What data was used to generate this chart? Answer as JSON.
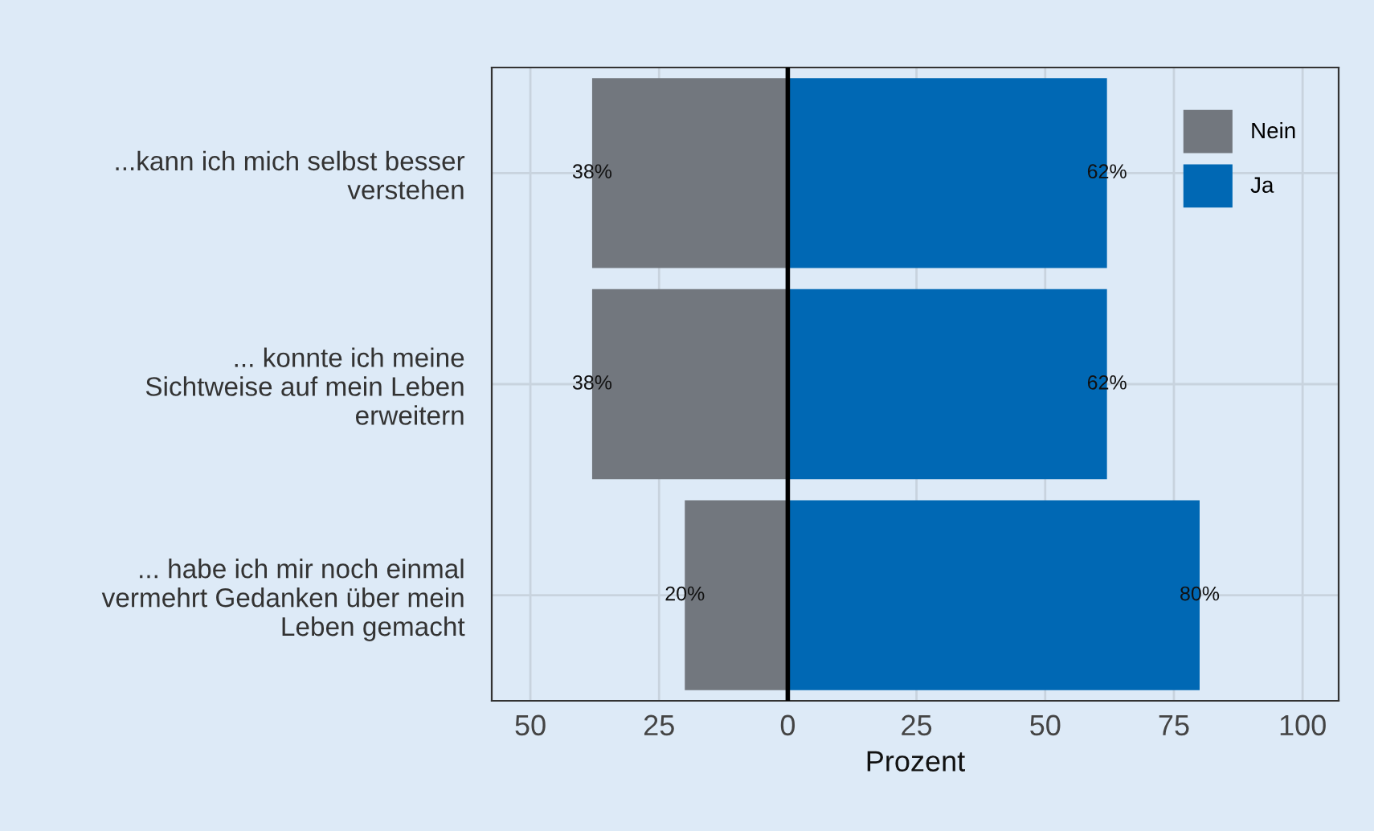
{
  "chart_data": {
    "type": "bar",
    "orientation": "horizontal",
    "xlabel": "Prozent",
    "categories": [
      "...kann ich mich selbst besser\nverstehen",
      "... konnte ich meine\nSichtweise auf mein Leben\nerweitern",
      "... habe ich mir noch einmal\nvermehrt Gedanken über mein\nLeben gemacht"
    ],
    "series": [
      {
        "name": "Nein",
        "color": "#72777e",
        "values": [
          38,
          38,
          20
        ],
        "base": [
          -38,
          -38,
          -20
        ],
        "value_labels": [
          "38%",
          "38%",
          "20%"
        ]
      },
      {
        "name": "Ja",
        "color": "#0068b4",
        "values": [
          62,
          62,
          80
        ],
        "value_labels": [
          "62%",
          "62%",
          "80%"
        ]
      }
    ],
    "xlim": [
      -57.5,
      107
    ],
    "xticks": [
      {
        "value": -50,
        "label": "50"
      },
      {
        "value": -25,
        "label": "25"
      },
      0,
      25,
      50,
      75,
      100
    ],
    "ref_lines": [
      {
        "axis": "x",
        "value": 0,
        "color": "#000000"
      }
    ],
    "grid": true,
    "legend": "top right"
  }
}
